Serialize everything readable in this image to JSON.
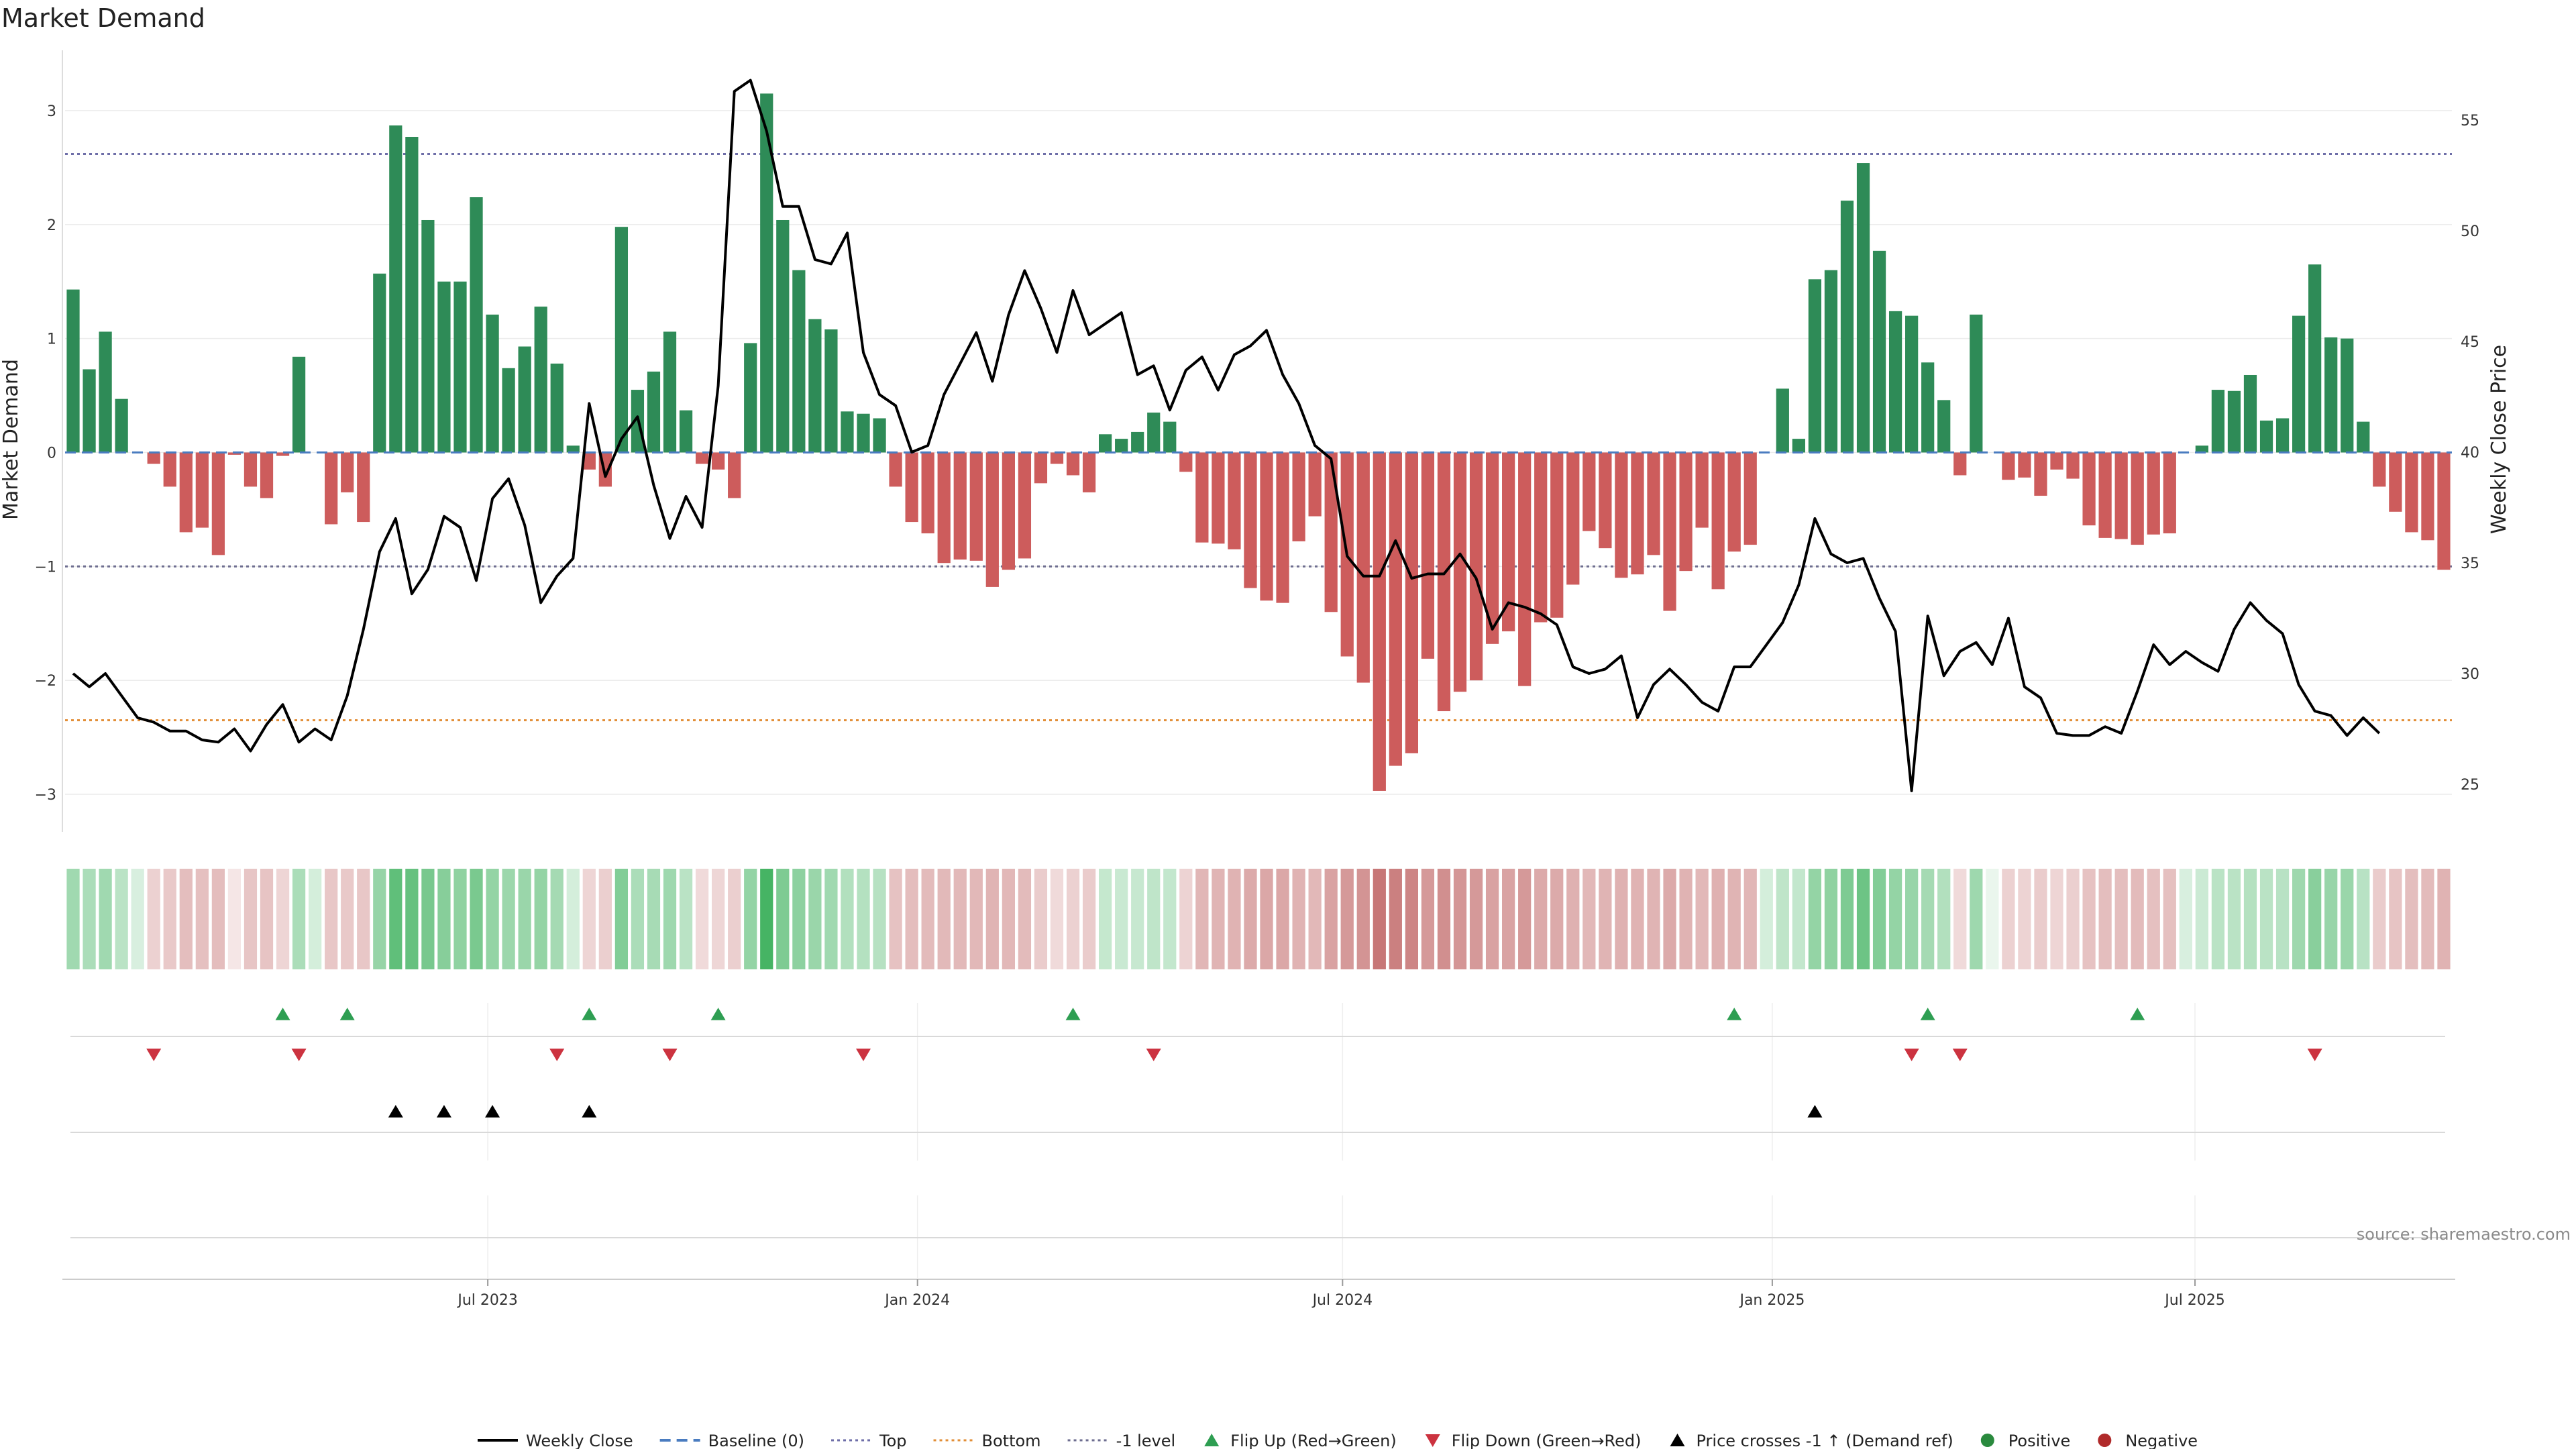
{
  "chart_data": {
    "type": "bar",
    "title": "Market Demand",
    "ylabel": "Market Demand",
    "y2label": "Weekly Close Price",
    "ylim": [
      -3.3,
      3.5
    ],
    "y2lim": [
      23,
      58
    ],
    "y_ticks": [
      -3,
      -2,
      -1,
      0,
      1,
      2,
      3
    ],
    "y_tick_labels": [
      "−3",
      "−2",
      "−1",
      "0",
      "1",
      "2",
      "3"
    ],
    "y2_ticks": [
      25,
      30,
      35,
      40,
      45,
      50,
      55
    ],
    "x_start": "2023-01-01",
    "x_end": "2025-10-19",
    "x_ticks": [
      {
        "date": "2023-07-01",
        "label": "Jul 2023"
      },
      {
        "date": "2024-01-01",
        "label": "Jan 2024"
      },
      {
        "date": "2024-07-01",
        "label": "Jul 2024"
      },
      {
        "date": "2025-01-01",
        "label": "Jan 2025"
      },
      {
        "date": "2025-07-01",
        "label": "Jul 2025"
      }
    ],
    "reference_lines": {
      "top": 2.62,
      "bottom": -2.35,
      "minus_one": -1,
      "baseline": 0
    },
    "demand": [
      1.43,
      0.73,
      1.06,
      0.47,
      0.0,
      -0.1,
      -0.3,
      -0.7,
      -0.66,
      -0.9,
      -0.02,
      -0.3,
      -0.4,
      -0.03,
      0.84,
      0.0,
      -0.63,
      -0.35,
      -0.61,
      1.57,
      2.87,
      2.77,
      2.04,
      1.5,
      1.5,
      2.24,
      1.21,
      0.74,
      0.93,
      1.28,
      0.78,
      0.06,
      -0.15,
      -0.3,
      1.98,
      0.55,
      0.71,
      1.06,
      0.37,
      -0.1,
      -0.15,
      -0.4,
      0.96,
      3.15,
      2.04,
      1.6,
      1.17,
      1.08,
      0.36,
      0.34,
      0.3,
      -0.3,
      -0.61,
      -0.71,
      -0.97,
      -0.94,
      -0.95,
      -1.18,
      -1.03,
      -0.93,
      -0.27,
      -0.1,
      -0.2,
      -0.35,
      0.16,
      0.12,
      0.18,
      0.35,
      0.27,
      -0.17,
      -0.79,
      -0.8,
      -0.85,
      -1.19,
      -1.3,
      -1.32,
      -0.78,
      -0.56,
      -1.4,
      -1.79,
      -2.02,
      -2.97,
      -2.75,
      -2.64,
      -1.81,
      -2.27,
      -2.1,
      -2.0,
      -1.68,
      -1.57,
      -2.05,
      -1.49,
      -1.45,
      -1.16,
      -0.69,
      -0.84,
      -1.1,
      -1.07,
      -0.9,
      -1.39,
      -1.04,
      -0.66,
      -1.2,
      -0.87,
      -0.81,
      0.0,
      0.56,
      0.12,
      1.52,
      1.6,
      2.21,
      2.54,
      1.77,
      1.24,
      1.2,
      0.79,
      0.46,
      -0.2,
      1.21,
      0.0,
      -0.24,
      -0.22,
      -0.38,
      -0.15,
      -0.23,
      -0.64,
      -0.75,
      -0.76,
      -0.81,
      -0.72,
      -0.71,
      0.0,
      0.06,
      0.55,
      0.54,
      0.68,
      0.28,
      0.3,
      1.2,
      1.65,
      1.01,
      1.0,
      0.27,
      -0.3,
      -0.52,
      -0.7,
      -0.77,
      -1.03
    ],
    "price": [
      30.0,
      29.4,
      30.0,
      29.0,
      28.0,
      27.8,
      27.4,
      27.4,
      27.0,
      26.9,
      27.5,
      26.5,
      27.7,
      28.6,
      26.9,
      27.5,
      27.0,
      29.0,
      32.0,
      35.5,
      37.0,
      33.6,
      34.7,
      37.1,
      36.6,
      34.2,
      37.9,
      38.8,
      36.7,
      33.2,
      34.4,
      35.2,
      42.2,
      38.9,
      40.6,
      41.6,
      38.5,
      36.1,
      38.0,
      36.6,
      43.0,
      56.3,
      56.8,
      54.5,
      51.1,
      51.1,
      48.7,
      48.5,
      49.9,
      44.5,
      42.6,
      42.1,
      40.0,
      40.3,
      42.6,
      44.0,
      45.4,
      43.2,
      46.2,
      48.2,
      46.5,
      44.5,
      47.3,
      45.3,
      45.8,
      46.3,
      43.5,
      43.9,
      41.9,
      43.7,
      44.3,
      42.8,
      44.4,
      44.8,
      45.5,
      43.5,
      42.2,
      40.3,
      39.7,
      35.3,
      34.4,
      34.4,
      36.0,
      34.3,
      34.5,
      34.5,
      35.4,
      34.3,
      32.0,
      33.2,
      33.0,
      32.7,
      32.2,
      30.3,
      30.0,
      30.2,
      30.8,
      28.0,
      29.5,
      30.2,
      29.5,
      28.7,
      28.3,
      30.3,
      30.3,
      31.3,
      32.3,
      34.0,
      37.0,
      35.4,
      35.0,
      35.2,
      33.4,
      31.9,
      24.7,
      32.6,
      29.9,
      31.0,
      31.4,
      30.4,
      32.5,
      29.4,
      28.9,
      27.3,
      27.2,
      27.2,
      27.6,
      27.3,
      29.2,
      31.3,
      30.4,
      31.0,
      30.5,
      30.1,
      32.0,
      33.2,
      32.4,
      31.8,
      29.5,
      28.3,
      28.1,
      27.2,
      28.0,
      27.3
    ],
    "strip_levels": [
      0.44,
      0.39,
      0.44,
      0.32,
      0.18,
      -0.27,
      -0.32,
      -0.38,
      -0.37,
      -0.39,
      -0.15,
      -0.34,
      -0.35,
      -0.25,
      0.39,
      0.2,
      -0.33,
      -0.32,
      -0.33,
      0.49,
      0.74,
      0.71,
      0.63,
      0.56,
      0.52,
      0.62,
      0.5,
      0.46,
      0.47,
      0.5,
      0.42,
      0.2,
      -0.25,
      -0.28,
      0.58,
      0.39,
      0.41,
      0.45,
      0.32,
      -0.22,
      -0.24,
      -0.28,
      0.5,
      0.86,
      0.6,
      0.53,
      0.47,
      0.44,
      0.36,
      0.35,
      0.34,
      -0.36,
      -0.39,
      -0.4,
      -0.41,
      -0.41,
      -0.42,
      -0.44,
      -0.42,
      -0.4,
      -0.3,
      -0.22,
      -0.27,
      -0.3,
      0.27,
      0.25,
      0.26,
      0.3,
      0.28,
      -0.26,
      -0.43,
      -0.44,
      -0.45,
      -0.5,
      -0.52,
      -0.52,
      -0.45,
      -0.42,
      -0.55,
      -0.6,
      -0.63,
      -0.8,
      -0.75,
      -0.72,
      -0.6,
      -0.66,
      -0.62,
      -0.6,
      -0.55,
      -0.54,
      -0.6,
      -0.5,
      -0.5,
      -0.46,
      -0.42,
      -0.44,
      -0.46,
      -0.45,
      -0.44,
      -0.5,
      -0.45,
      -0.42,
      -0.46,
      -0.44,
      -0.43,
      0.2,
      0.3,
      0.28,
      0.5,
      0.52,
      0.6,
      0.68,
      0.58,
      0.5,
      0.48,
      0.42,
      0.36,
      -0.22,
      0.45,
      0.1,
      -0.27,
      -0.26,
      -0.3,
      -0.25,
      -0.28,
      -0.36,
      -0.38,
      -0.38,
      -0.4,
      -0.37,
      -0.37,
      0.18,
      0.24,
      0.32,
      0.32,
      0.35,
      0.32,
      0.33,
      0.45,
      0.55,
      0.48,
      0.47,
      0.33,
      -0.3,
      -0.35,
      -0.38,
      -0.4,
      -0.45
    ],
    "flip_up": [
      13,
      17,
      32,
      40,
      62,
      103,
      115,
      128
    ],
    "flip_down": [
      5,
      14,
      30,
      37,
      49,
      67,
      114,
      117,
      139
    ],
    "price_cross": [
      20,
      23,
      26,
      32,
      108
    ],
    "legend": [
      {
        "key": "weekly_close",
        "label": "Weekly Close",
        "marker": "line",
        "color": "#000000"
      },
      {
        "key": "baseline",
        "label": "Baseline (0)",
        "marker": "dash",
        "color": "#4a7cc0"
      },
      {
        "key": "top",
        "label": "Top",
        "marker": "dot",
        "color": "#6e6ea8"
      },
      {
        "key": "bottom",
        "label": "Bottom",
        "marker": "dot",
        "color": "#e28f38"
      },
      {
        "key": "minus_one",
        "label": "-1 level",
        "marker": "dot",
        "color": "#6e6e90"
      },
      {
        "key": "flip_up",
        "label": "Flip Up (Red→Green)",
        "marker": "tri-up",
        "color": "#2e9e52"
      },
      {
        "key": "flip_down",
        "label": "Flip Down (Green→Red)",
        "marker": "tri-down",
        "color": "#cc3340"
      },
      {
        "key": "price_cross",
        "label": "Price crosses -1 ↑ (Demand ref)",
        "marker": "tri-up",
        "color": "#000000"
      },
      {
        "key": "positive",
        "label": "Positive",
        "marker": "circle",
        "color": "#2a8a3e"
      },
      {
        "key": "negative",
        "label": "Negative",
        "marker": "circle",
        "color": "#b02a2a"
      }
    ],
    "source": "source: sharemaestro.com",
    "colors": {
      "positive_bar": "#2e8b57",
      "negative_bar": "#cd5c5c",
      "price_line": "#000000"
    }
  }
}
